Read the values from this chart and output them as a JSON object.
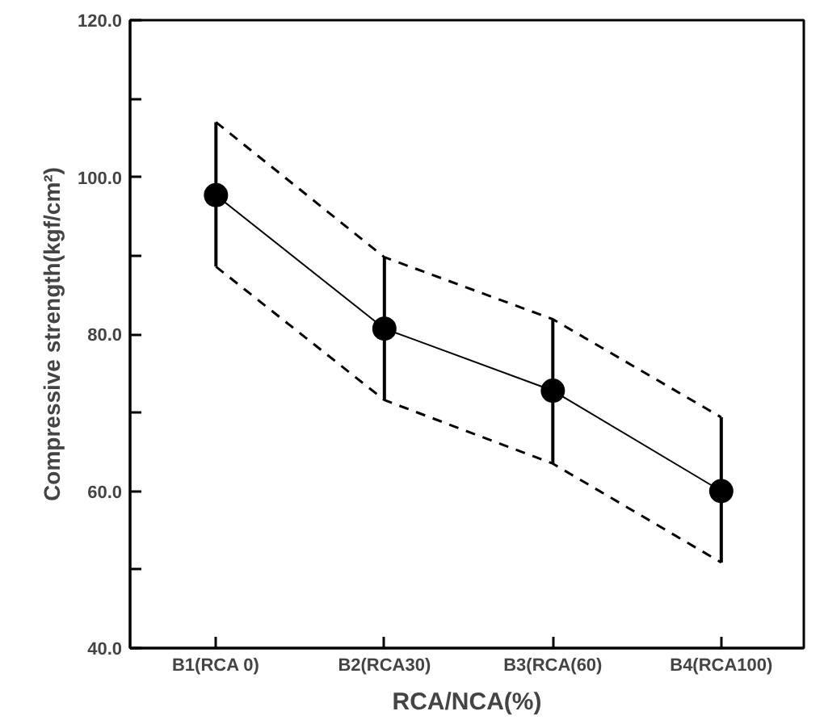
{
  "chart_data": {
    "type": "line",
    "xlabel": "RCA/NCA(%)",
    "ylabel": "Compressive strength(kgf/cm²)",
    "categories": [
      "B1(RCA 0)",
      "B2(RCA30)",
      "B3(RCA(60)",
      "B4(RCA100)"
    ],
    "series": [
      {
        "color": "#000000",
        "values": [
          97.7,
          80.7,
          72.8,
          60.0
        ],
        "errors": [
          [
            88.6,
            107.0
          ],
          [
            71.6,
            89.8
          ],
          [
            63.5,
            81.9
          ],
          [
            50.9,
            69.4
          ]
        ],
        "marker": "circle",
        "line_style": "solid"
      },
      {
        "color": "#000000",
        "values": [
          107.0,
          89.8,
          81.9,
          69.4
        ],
        "marker": "none",
        "line_style": "dashed"
      },
      {
        "color": "#000000",
        "values": [
          88.6,
          71.6,
          63.5,
          50.9
        ],
        "marker": "none",
        "line_style": "dashed"
      }
    ],
    "ylim": [
      40,
      120
    ],
    "yticks": [
      {
        "value": 40,
        "label": "40.0"
      },
      {
        "value": 50,
        "label": null
      },
      {
        "value": 60,
        "label": "60.0"
      },
      {
        "value": 70,
        "label": null
      },
      {
        "value": 80,
        "label": "80.0"
      },
      {
        "value": 90,
        "label": null
      },
      {
        "value": 100,
        "label": "100.0"
      },
      {
        "value": 110,
        "label": null
      },
      {
        "value": 120,
        "label": "120.0"
      }
    ],
    "grid": false
  }
}
